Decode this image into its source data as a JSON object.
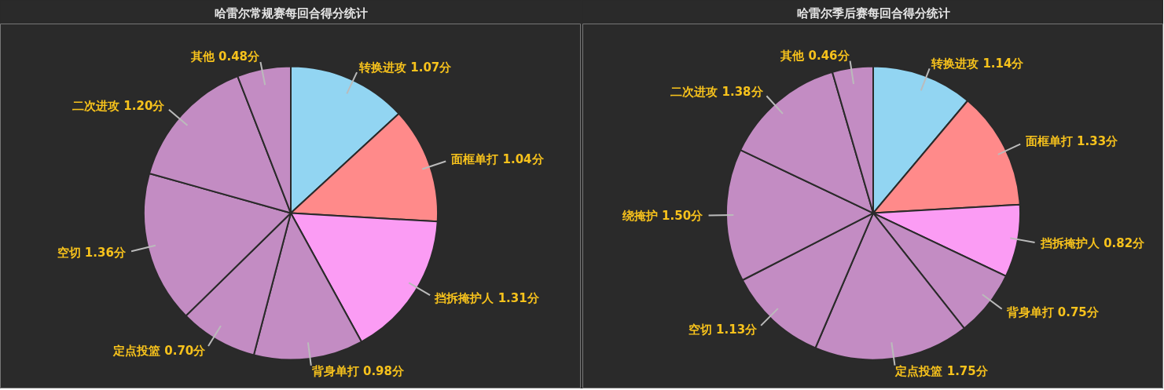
{
  "chart_data": [
    {
      "type": "pie",
      "title": "哈雷尔常规赛每回合得分统计",
      "categories": [
        "转换进攻",
        "面框单打",
        "挡拆掩护人",
        "背身单打",
        "定点投篮",
        "空切",
        "二次进攻",
        "其他"
      ],
      "values": [
        1.07,
        1.04,
        1.31,
        0.98,
        0.7,
        1.36,
        1.2,
        0.48
      ],
      "value_labels": [
        "1.07分",
        "1.04分",
        "1.31分",
        "0.98分",
        "0.70分",
        "1.36分",
        "1.20分",
        "0.48分"
      ],
      "colors": [
        "#92d5f2",
        "#ff8a8a",
        "#fb9cf4",
        "#c38cc3",
        "#c38cc3",
        "#c38cc3",
        "#c38cc3",
        "#c38cc3"
      ],
      "legend": false
    },
    {
      "type": "pie",
      "title": "哈雷尔季后赛每回合得分统计",
      "categories": [
        "转换进攻",
        "面框单打",
        "挡拆掩护人",
        "背身单打",
        "定点投篮",
        "空切",
        "绕掩护",
        "二次进攻",
        "其他"
      ],
      "values": [
        1.14,
        1.33,
        0.82,
        0.75,
        1.75,
        1.13,
        1.5,
        1.38,
        0.46
      ],
      "value_labels": [
        "1.14分",
        "1.33分",
        "0.82分",
        "0.75分",
        "1.75分",
        "1.13分",
        "1.50分",
        "1.38分",
        "0.46分"
      ],
      "colors": [
        "#92d5f2",
        "#ff8a8a",
        "#fb9cf4",
        "#c38cc3",
        "#c38cc3",
        "#c38cc3",
        "#c38cc3",
        "#c38cc3",
        "#c38cc3"
      ],
      "legend": false
    }
  ]
}
